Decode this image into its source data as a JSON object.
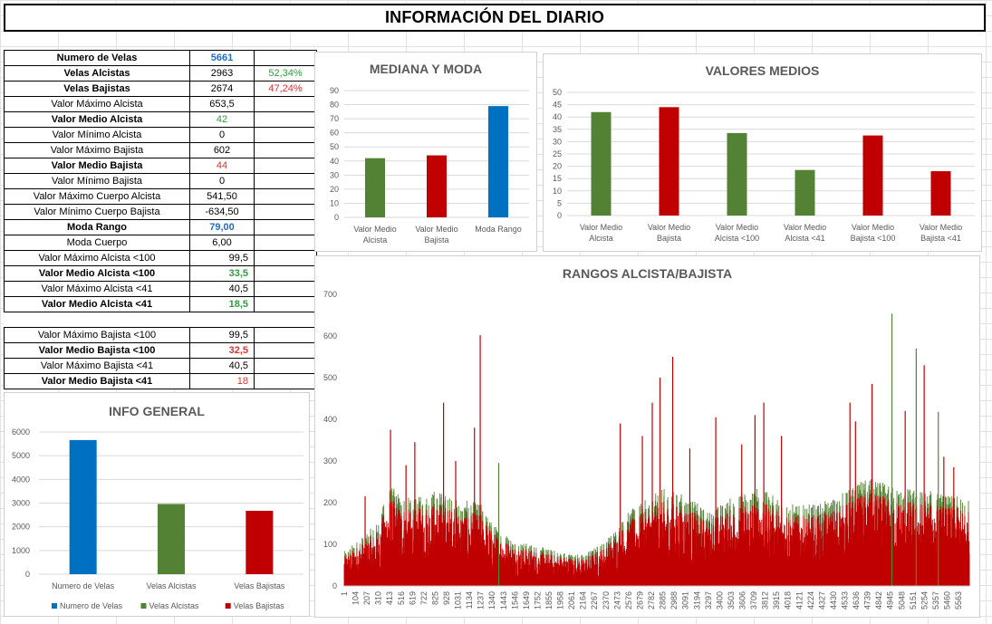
{
  "title": "INFORMACIÓN DEL DIARIO",
  "stats": [
    {
      "label": "Numero de Velas",
      "value": "5661",
      "pct": "",
      "bold": true,
      "vcolor": "blue",
      "vbold": true
    },
    {
      "label": "Velas Alcistas",
      "value": "2963",
      "pct": "52,34%",
      "pcolor": "green",
      "bold": true
    },
    {
      "label": "Velas Bajistas",
      "value": "2674",
      "pct": "47,24%",
      "pcolor": "red",
      "bold": true
    },
    {
      "label": "Valor Máximo Alcista",
      "value": "653,5",
      "pct": ""
    },
    {
      "label": "Valor Medio Alcista",
      "value": "42",
      "pct": "",
      "bold": true,
      "vcolor": "green"
    },
    {
      "label": "Valor Mínimo Alcista",
      "value": "0",
      "pct": ""
    },
    {
      "label": "Valor Máximo Bajista",
      "value": "602",
      "pct": ""
    },
    {
      "label": "Valor Medio Bajista",
      "value": "44",
      "pct": "",
      "bold": true,
      "vcolor": "red"
    },
    {
      "label": "Valor Mínimo Bajista",
      "value": "0",
      "pct": ""
    },
    {
      "label": "Valor Máximo Cuerpo Alcista",
      "value": "541,50",
      "pct": ""
    },
    {
      "label": "Valor Mínimo Cuerpo Bajista",
      "value": "-634,50",
      "pct": ""
    },
    {
      "label": "Moda Rango",
      "value": "79,00",
      "pct": "",
      "bold": true,
      "vcolor": "blue",
      "vbold": true
    },
    {
      "label": "Moda Cuerpo",
      "value": "6,00",
      "pct": ""
    },
    {
      "label": "Valor Máximo Alcista <100",
      "value": "99,5",
      "pct": "",
      "right": true
    },
    {
      "label": "Valor Medio Alcista <100",
      "value": "33,5",
      "pct": "",
      "bold": true,
      "vcolor": "green",
      "vbold": true,
      "right": true
    },
    {
      "label": "Valor Máximo Alcista <41",
      "value": "40,5",
      "pct": "",
      "right": true
    },
    {
      "label": "Valor Medio Alcista <41",
      "value": "18,5",
      "pct": "",
      "bold": true,
      "vcolor": "green",
      "vbold": true,
      "right": true
    },
    {
      "label": "",
      "value": "",
      "pct": "",
      "gap": true
    },
    {
      "label": "Valor Máximo Bajista <100",
      "value": "99,5",
      "pct": "",
      "right": true
    },
    {
      "label": "Valor Medio Bajista <100",
      "value": "32,5",
      "pct": "",
      "bold": true,
      "vcolor": "red",
      "vbold": true,
      "right": true
    },
    {
      "label": "Valor Máximo Bajista <41",
      "value": "40,5",
      "pct": "",
      "right": true
    },
    {
      "label": "Valor Medio Bajista <41",
      "value": "18",
      "pct": "",
      "bold": true,
      "vcolor": "red",
      "right": true
    }
  ],
  "colors": {
    "green": "#548235",
    "red": "#c00000",
    "blue": "#0070c0",
    "grid": "#d9d9d9",
    "axis": "#595959"
  },
  "chart_data": [
    {
      "id": "mediana",
      "type": "bar",
      "title": "MEDIANA Y MODA",
      "categories": [
        "Valor Medio Alcista",
        "Valor Medio Bajista",
        "Moda Rango"
      ],
      "values": [
        42,
        44,
        79
      ],
      "bar_colors": [
        "green",
        "red",
        "blue"
      ],
      "ylim": [
        0,
        90
      ],
      "yticks": [
        0,
        10,
        20,
        30,
        40,
        50,
        60,
        70,
        80,
        90
      ],
      "grid": true
    },
    {
      "id": "medios",
      "type": "bar",
      "title": "VALORES MEDIOS",
      "categories": [
        "Valor Medio Alcista",
        "Valor Medio Bajista",
        "Valor Medio Alcista <100",
        "Valor Medio Alcista <41",
        "Valor Medio Bajista <100",
        "Valor Medio Bajista <41"
      ],
      "values": [
        42,
        44,
        33.5,
        18.5,
        32.5,
        18
      ],
      "bar_colors": [
        "green",
        "red",
        "green",
        "green",
        "red",
        "red"
      ],
      "ylim": [
        0,
        50
      ],
      "yticks": [
        0,
        5,
        10,
        15,
        20,
        25,
        30,
        35,
        40,
        45,
        50
      ],
      "grid": true
    },
    {
      "id": "general",
      "type": "bar",
      "title": "INFO GENERAL",
      "categories": [
        "Numero de Velas",
        "Velas Alcistas",
        "Velas Bajistas"
      ],
      "series": [
        {
          "name": "Numero de Velas",
          "values": [
            5661,
            null,
            null
          ],
          "color": "blue"
        },
        {
          "name": "Velas Alcistas",
          "values": [
            null,
            2963,
            null
          ],
          "color": "green"
        },
        {
          "name": "Velas Bajistas",
          "values": [
            null,
            null,
            2674
          ],
          "color": "red"
        }
      ],
      "ylim": [
        0,
        6000
      ],
      "yticks": [
        0,
        1000,
        2000,
        3000,
        4000,
        5000,
        6000
      ],
      "grid": true,
      "legend": "bottom"
    },
    {
      "id": "rangos",
      "type": "bar",
      "title": "RANGOS ALCISTA/BAJISTA",
      "ylim": [
        0,
        700
      ],
      "yticks": [
        0,
        100,
        200,
        300,
        400,
        500,
        600,
        700
      ],
      "xticks": [
        "1",
        "104",
        "207",
        "310",
        "413",
        "516",
        "619",
        "722",
        "825",
        "928",
        "1031",
        "1134",
        "1237",
        "1340",
        "1443",
        "1546",
        "1649",
        "1752",
        "1855",
        "1958",
        "2061",
        "2164",
        "2267",
        "2370",
        "2473",
        "2576",
        "2679",
        "2782",
        "2885",
        "2988",
        "3091",
        "3194",
        "3297",
        "3400",
        "3503",
        "3606",
        "3709",
        "3812",
        "3915",
        "4018",
        "4121",
        "4224",
        "4327",
        "4430",
        "4533",
        "4636",
        "4739",
        "4842",
        "4945",
        "5048",
        "5151",
        "5254",
        "5357",
        "5460",
        "5563"
      ],
      "n_candles": 5661,
      "series": [
        {
          "name": "Alcista",
          "color": "green",
          "max": 653.5,
          "mean": 42
        },
        {
          "name": "Bajista",
          "color": "red",
          "max": 602,
          "mean": 44
        }
      ],
      "envelope": [
        {
          "x": 1,
          "y": 60
        },
        {
          "x": 300,
          "y": 110
        },
        {
          "x": 413,
          "y": 175
        },
        {
          "x": 620,
          "y": 150
        },
        {
          "x": 825,
          "y": 170
        },
        {
          "x": 1031,
          "y": 150
        },
        {
          "x": 1237,
          "y": 145
        },
        {
          "x": 1340,
          "y": 110
        },
        {
          "x": 1546,
          "y": 80
        },
        {
          "x": 1752,
          "y": 70
        },
        {
          "x": 1958,
          "y": 60
        },
        {
          "x": 2164,
          "y": 55
        },
        {
          "x": 2370,
          "y": 80
        },
        {
          "x": 2576,
          "y": 130
        },
        {
          "x": 2885,
          "y": 170
        },
        {
          "x": 3091,
          "y": 160
        },
        {
          "x": 3297,
          "y": 130
        },
        {
          "x": 3503,
          "y": 155
        },
        {
          "x": 3709,
          "y": 175
        },
        {
          "x": 3915,
          "y": 155
        },
        {
          "x": 4121,
          "y": 140
        },
        {
          "x": 4327,
          "y": 145
        },
        {
          "x": 4533,
          "y": 165
        },
        {
          "x": 4739,
          "y": 190
        },
        {
          "x": 4945,
          "y": 175
        },
        {
          "x": 5151,
          "y": 170
        },
        {
          "x": 5357,
          "y": 165
        },
        {
          "x": 5661,
          "y": 150
        }
      ],
      "spikes": [
        {
          "x": 190,
          "y": 215,
          "s": "red"
        },
        {
          "x": 420,
          "y": 375,
          "s": "red"
        },
        {
          "x": 560,
          "y": 290,
          "s": "red"
        },
        {
          "x": 640,
          "y": 345,
          "s": "red"
        },
        {
          "x": 900,
          "y": 440,
          "s": "red"
        },
        {
          "x": 1010,
          "y": 300,
          "s": "red"
        },
        {
          "x": 1180,
          "y": 380,
          "s": "red"
        },
        {
          "x": 1232,
          "y": 602,
          "s": "red"
        },
        {
          "x": 1400,
          "y": 295,
          "s": "green"
        },
        {
          "x": 2500,
          "y": 390,
          "s": "red"
        },
        {
          "x": 2700,
          "y": 360,
          "s": "red"
        },
        {
          "x": 2790,
          "y": 440,
          "s": "red"
        },
        {
          "x": 2860,
          "y": 500,
          "s": "red"
        },
        {
          "x": 2975,
          "y": 550,
          "s": "red"
        },
        {
          "x": 3130,
          "y": 330,
          "s": "red"
        },
        {
          "x": 3365,
          "y": 405,
          "s": "red"
        },
        {
          "x": 3600,
          "y": 340,
          "s": "red"
        },
        {
          "x": 3720,
          "y": 410,
          "s": "red"
        },
        {
          "x": 3800,
          "y": 440,
          "s": "red"
        },
        {
          "x": 3960,
          "y": 360,
          "s": "red"
        },
        {
          "x": 4580,
          "y": 440,
          "s": "red"
        },
        {
          "x": 4630,
          "y": 395,
          "s": "red"
        },
        {
          "x": 4780,
          "y": 485,
          "s": "red"
        },
        {
          "x": 4960,
          "y": 653.5,
          "s": "green"
        },
        {
          "x": 5080,
          "y": 420,
          "s": "red"
        },
        {
          "x": 5180,
          "y": 570,
          "s": "green"
        },
        {
          "x": 5252,
          "y": 530,
          "s": "red"
        },
        {
          "x": 5380,
          "y": 418,
          "s": "green"
        },
        {
          "x": 5430,
          "y": 310,
          "s": "red"
        },
        {
          "x": 5520,
          "y": 285,
          "s": "red"
        }
      ]
    }
  ]
}
